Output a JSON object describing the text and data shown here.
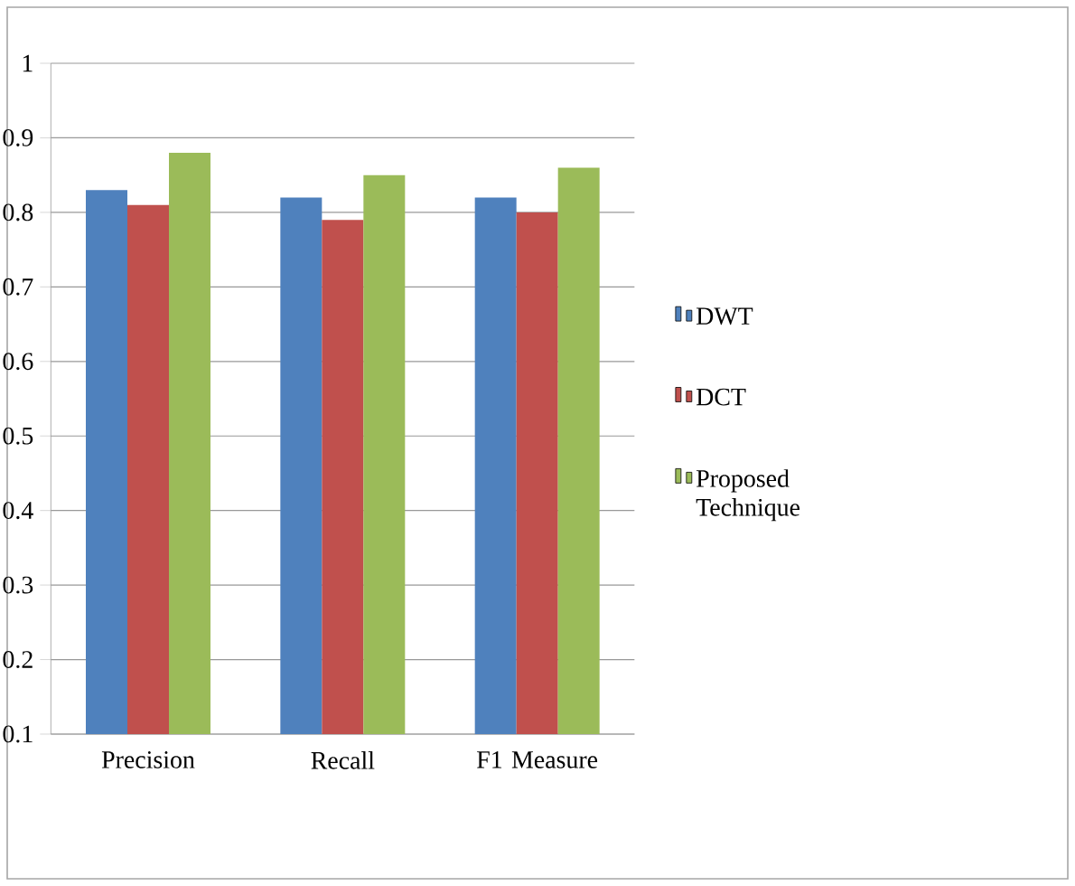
{
  "chart_data": {
    "type": "bar",
    "categories": [
      "Precision",
      "Recall",
      "F1 Measure"
    ],
    "series": [
      {
        "name": "DWT",
        "color": "#4f81bd",
        "values": [
          0.83,
          0.82,
          0.82
        ]
      },
      {
        "name": "DCT",
        "color": "#c0504d",
        "values": [
          0.81,
          0.79,
          0.8
        ]
      },
      {
        "name": "Proposed Technique",
        "color": "#9bbb59",
        "values": [
          0.88,
          0.85,
          0.86
        ]
      }
    ],
    "ylim": [
      0.1,
      1
    ],
    "yticks": [
      0.1,
      0.2,
      0.3,
      0.4,
      0.5,
      0.6,
      0.7,
      0.8,
      0.9,
      1
    ],
    "grid": "y",
    "legend": "right"
  }
}
